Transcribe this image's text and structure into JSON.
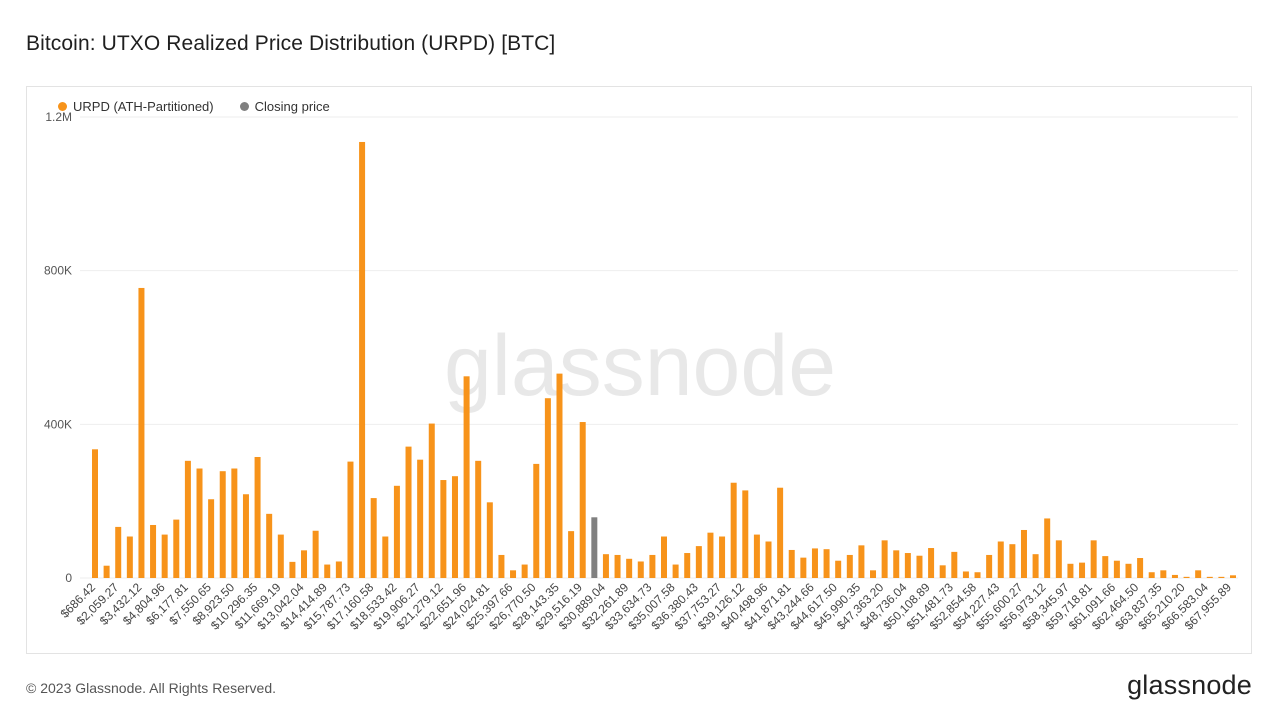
{
  "page": {
    "title": "Bitcoin: UTXO Realized Price Distribution (URPD) [BTC]",
    "footer": "© 2023 Glassnode. All Rights Reserved.",
    "brand": "glassnode",
    "watermark": "glassnode"
  },
  "colors": {
    "series": "#f7931a",
    "closing": "#808080",
    "grid": "#eeeeee",
    "axis_text": "#555555"
  },
  "chart_data": {
    "type": "bar",
    "title": "Bitcoin: UTXO Realized Price Distribution (URPD) [BTC]",
    "xlabel": "",
    "ylabel": "",
    "ylim": [
      0,
      1200000
    ],
    "yticks": [
      0,
      400000,
      800000,
      1200000
    ],
    "ytick_labels": [
      "0",
      "400K",
      "800K",
      "1.2M"
    ],
    "grid": true,
    "legend_position": "top-left",
    "legend": [
      {
        "label": "URPD (ATH-Partitioned)",
        "color": "#f7931a"
      },
      {
        "label": "Closing price",
        "color": "#808080"
      }
    ],
    "closing_price_index": 43,
    "xtick_labels": [
      "$686.42",
      "$2,059.27",
      "$3,432.12",
      "$4,804.96",
      "$6,177.81",
      "$7,550.65",
      "$8,923.50",
      "$10,296.35",
      "$11,669.19",
      "$13,042.04",
      "$14,414.89",
      "$15,787.73",
      "$17,160.58",
      "$18,533.42",
      "$19,906.27",
      "$21,279.12",
      "$22,651.96",
      "$24,024.81",
      "$25,397.66",
      "$26,770.50",
      "$28,143.35",
      "$29,516.19",
      "$30,889.04",
      "$32,261.89",
      "$33,634.73",
      "$35,007.58",
      "$36,380.43",
      "$37,753.27",
      "$39,126.12",
      "$40,498.96",
      "$41,871.81",
      "$43,244.66",
      "$44,617.50",
      "$45,990.35",
      "$47,363.20",
      "$48,736.04",
      "$50,108.89",
      "$51,481.73",
      "$52,854.58",
      "$54,227.43",
      "$55,600.27",
      "$56,973.12",
      "$58,345.97",
      "$59,718.81",
      "$61,091.66",
      "$62,464.50",
      "$63,837.35",
      "$65,210.20",
      "$66,583.04",
      "$67,955.89"
    ],
    "values": [
      335000,
      32000,
      133000,
      108000,
      755000,
      138000,
      113000,
      152000,
      305000,
      285000,
      205000,
      278000,
      285000,
      218000,
      315000,
      167000,
      113000,
      42000,
      72000,
      123000,
      35000,
      43000,
      303000,
      1135000,
      208000,
      108000,
      240000,
      342000,
      308000,
      402000,
      255000,
      265000,
      525000,
      305000,
      197000,
      60000,
      20000,
      35000,
      297000,
      468000,
      532000,
      122000,
      406000,
      158000,
      62000,
      60000,
      50000,
      43000,
      60000,
      108000,
      35000,
      65000,
      83000,
      118000,
      108000,
      248000,
      228000,
      113000,
      95000,
      235000,
      73000,
      53000,
      77000,
      75000,
      45000,
      60000,
      85000,
      20000,
      98000,
      72000,
      65000,
      58000,
      78000,
      33000,
      68000,
      17000,
      15000,
      60000,
      95000,
      88000,
      125000,
      62000,
      155000,
      98000,
      37000,
      40000,
      98000,
      57000,
      45000,
      37000,
      52000,
      15000,
      20000,
      8000,
      3000,
      20000,
      3000,
      3000,
      7000
    ]
  }
}
